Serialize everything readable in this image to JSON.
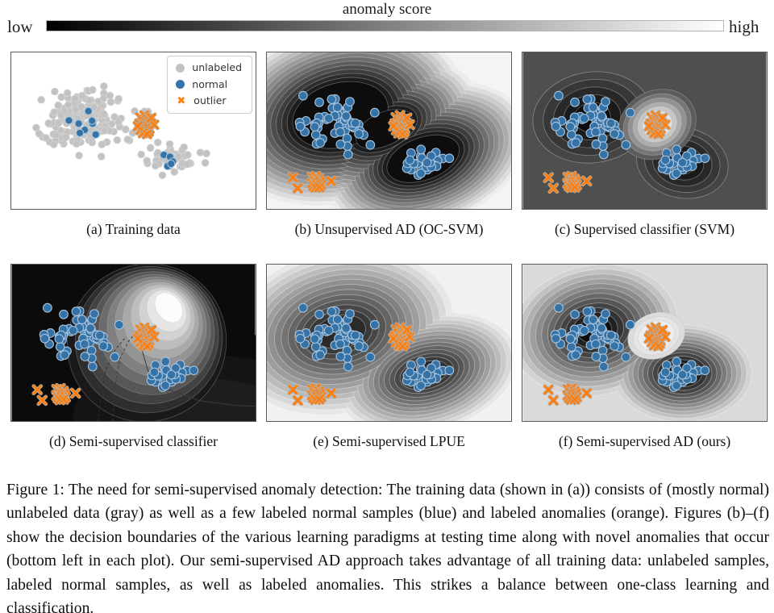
{
  "caption": {
    "text": "Figure 1: The need for semi-supervised anomaly detection: The training data (shown in (a)) consists of (mostly normal) unlabeled data (gray) as well as a few labeled normal samples (blue) and labeled anomalies (orange). Figures (b)–(f) show the decision boundaries of the various learning paradigms at testing time along with novel anomalies that occur (bottom left in each plot). Our semi-supervised AD approach takes advantage of all training data: unlabeled samples, labeled normal samples, as well as labeled anomalies. This strikes a balance between one-class learning and classification."
  },
  "icons": {
    "outlier_marker": "✖"
  },
  "chart_data": {
    "type": "scatter",
    "colorbar": {
      "title": "anomaly score",
      "low_label": "low",
      "high_label": "high",
      "gradient": [
        "#000000",
        "#ffffff"
      ]
    },
    "legend": {
      "position": "top-right of panel (a)",
      "items": [
        {
          "label": "unlabeled",
          "class": "unlabeled",
          "marker": "circle"
        },
        {
          "label": "normal",
          "class": "normal",
          "marker": "circle"
        },
        {
          "label": "outlier",
          "class": "outlier",
          "marker": "x"
        }
      ]
    },
    "classes": {
      "unlabeled": {
        "fill": "#c2c2c2",
        "edge": "#d0d0d0"
      },
      "normal": {
        "fill": "#3572a6",
        "edge": "#a8c4dd"
      },
      "outlier": {
        "fill": "#ff7f0e",
        "edge": "#b5b0a8"
      }
    },
    "point_groups": {
      "unlabeled_big": {
        "class": "unlabeled",
        "size": 4.3,
        "gen": {
          "seed": 101,
          "count": 170,
          "center": [
            0.295,
            0.43
          ],
          "std": [
            0.082,
            0.094
          ]
        }
      },
      "unlabeled_small": {
        "class": "unlabeled",
        "size": 4.3,
        "gen": {
          "seed": 102,
          "count": 46,
          "center": [
            0.66,
            0.685
          ],
          "std": [
            0.05,
            0.043
          ]
        }
      },
      "unlabeled_extra": {
        "class": "unlabeled",
        "size": 4.3,
        "points": [
          [
            0.505,
            0.375
          ],
          [
            0.545,
            0.377
          ],
          [
            0.497,
            0.515
          ],
          [
            0.476,
            0.556
          ],
          [
            0.775,
            0.64
          ],
          [
            0.8,
            0.646
          ],
          [
            0.57,
            0.61
          ],
          [
            0.532,
            0.652
          ],
          [
            0.468,
            0.492
          ],
          [
            0.6,
            0.575
          ]
        ]
      },
      "normal_big": {
        "class": "normal",
        "size": 4.6,
        "points": [
          [
            0.235,
            0.435
          ],
          [
            0.275,
            0.455
          ],
          [
            0.315,
            0.375
          ],
          [
            0.332,
            0.455
          ],
          [
            0.3,
            0.495
          ],
          [
            0.28,
            0.515
          ],
          [
            0.345,
            0.525
          ],
          [
            0.33,
            0.437
          ]
        ]
      },
      "normal_small": {
        "class": "normal",
        "size": 4.6,
        "points": [
          [
            0.625,
            0.655
          ],
          [
            0.65,
            0.667
          ],
          [
            0.662,
            0.697
          ],
          [
            0.64,
            0.727
          ],
          [
            0.655,
            0.712
          ]
        ]
      },
      "outlier_train": {
        "class": "outlier",
        "size": 4.4,
        "points": [
          [
            0.528,
            0.415
          ],
          [
            0.545,
            0.402
          ],
          [
            0.562,
            0.425
          ],
          [
            0.538,
            0.438
          ],
          [
            0.555,
            0.446
          ],
          [
            0.572,
            0.452
          ],
          [
            0.524,
            0.455
          ],
          [
            0.545,
            0.462
          ],
          [
            0.56,
            0.47
          ],
          [
            0.534,
            0.476
          ],
          [
            0.55,
            0.482
          ],
          [
            0.566,
            0.487
          ],
          [
            0.529,
            0.496
          ],
          [
            0.548,
            0.501
          ],
          [
            0.563,
            0.506
          ],
          [
            0.539,
            0.516
          ],
          [
            0.556,
            0.522
          ],
          [
            0.585,
            0.462
          ],
          [
            0.518,
            0.472
          ],
          [
            0.574,
            0.418
          ]
        ]
      },
      "test_big": {
        "class": "normal",
        "size": 5.4,
        "gen": {
          "seed": 111,
          "count": 60,
          "center": [
            0.3,
            0.44
          ],
          "std": [
            0.076,
            0.082
          ]
        }
      },
      "test_small": {
        "class": "normal",
        "size": 5.4,
        "gen": {
          "seed": 112,
          "count": 25,
          "center": [
            0.655,
            0.7
          ],
          "std": [
            0.052,
            0.042
          ]
        }
      },
      "novel_anomalies": {
        "class": "outlier",
        "size": 4.6,
        "points": [
          [
            0.105,
            0.8
          ],
          [
            0.125,
            0.868
          ],
          [
            0.185,
            0.798
          ],
          [
            0.2,
            0.792
          ],
          [
            0.212,
            0.81
          ],
          [
            0.194,
            0.82
          ],
          [
            0.184,
            0.836
          ],
          [
            0.205,
            0.83
          ],
          [
            0.217,
            0.826
          ],
          [
            0.19,
            0.852
          ],
          [
            0.205,
            0.846
          ],
          [
            0.221,
            0.846
          ],
          [
            0.198,
            0.864
          ],
          [
            0.213,
            0.861
          ],
          [
            0.262,
            0.822
          ]
        ]
      }
    },
    "panels": [
      {
        "id": "a",
        "caption": "(a) Training data",
        "legend": true,
        "background": {
          "fill": "#ffffff",
          "stacks": []
        },
        "groups": [
          "unlabeled_big",
          "unlabeled_small",
          "unlabeled_extra",
          "normal_big",
          "normal_small",
          "outlier_train"
        ]
      },
      {
        "id": "b",
        "caption": "(b) Unsupervised AD (OC-SVM)",
        "background": {
          "fill": "#f4f4f4",
          "stacks": [
            {
              "levels": 15,
              "outer": "#ececec",
              "inner": "#0d0d0d",
              "stroke": "rgba(255,255,255,0.30)",
              "blobs": [
                {
                  "cx0": 0.3,
                  "cy0": 0.4,
                  "rx0": 0.52,
                  "ry0": 0.56,
                  "rx1": 0.2,
                  "ry1": 0.205,
                  "rot": -15
                },
                {
                  "cx0": 0.65,
                  "cy0": 0.66,
                  "cx1": 0.64,
                  "cy1": 0.68,
                  "rx0": 0.44,
                  "ry0": 0.44,
                  "rx1": 0.155,
                  "ry1": 0.135,
                  "rot": -20
                },
                {
                  "cx0": 0.47,
                  "cy0": 0.5,
                  "cx1": 0.48,
                  "cy1": 0.49,
                  "rx0": 0.42,
                  "ry0": 0.42,
                  "rx1": 0.125,
                  "ry1": 0.105,
                  "rot": -25
                }
              ]
            }
          ]
        },
        "groups": [
          "test_big",
          "test_small",
          "outlier_train",
          "novel_anomalies"
        ]
      },
      {
        "id": "c",
        "caption": "(c) Supervised classifier (SVM)",
        "background": {
          "fill": "#4f4f4f",
          "stacks": [
            {
              "levels": 5,
              "outer": "#454545",
              "inner": "#0b0b0b",
              "stroke": "rgba(255,255,255,0.35)",
              "blobs": [
                {
                  "cx0": 0.285,
                  "cy0": 0.415,
                  "rx0": 0.245,
                  "ry0": 0.29,
                  "rx1": 0.075,
                  "ry1": 0.095,
                  "rot": -8
                },
                {
                  "cx0": 0.655,
                  "cy0": 0.705,
                  "rx0": 0.19,
                  "ry0": 0.225,
                  "rx1": 0.055,
                  "ry1": 0.07,
                  "rot": 12
                }
              ]
            },
            {
              "levels": 7,
              "outer": "#5c5c5c",
              "inner": "#fdfdfd",
              "stroke": "rgba(255,255,255,0.25)",
              "blobs": [
                {
                  "cx0": 0.552,
                  "cy0": 0.46,
                  "rx0": 0.165,
                  "ry0": 0.215,
                  "rx1": 0.04,
                  "ry1": 0.055,
                  "rot": -28
                }
              ]
            }
          ]
        },
        "groups": [
          "test_big",
          "test_small",
          "outlier_train",
          "novel_anomalies"
        ]
      },
      {
        "id": "d",
        "caption": "(d) Semi-supervised classifier",
        "background": {
          "fill": "#0b0b0b",
          "stacks": [
            {
              "levels": 3,
              "outer": "#0b0b0b",
              "inner": "#1d1d1d",
              "stroke": "none",
              "blobs": [
                {
                  "cx0": 0.8,
                  "cy0": 0.98,
                  "rx0": 0.75,
                  "ry0": 0.55,
                  "rx1": 0.35,
                  "ry1": 0.25,
                  "rot": 0
                }
              ]
            },
            {
              "levels": 12,
              "outer": "#191919",
              "inner": "#fbfbfb",
              "stroke": "rgba(190,190,190,0.35)",
              "blobs": [
                {
                  "cx0": 0.555,
                  "cy0": 0.5,
                  "cx1": 0.645,
                  "cy1": 0.275,
                  "rx0": 0.33,
                  "ry0": 0.5,
                  "rx1": 0.05,
                  "ry1": 0.105,
                  "rot": -38
                }
              ]
            }
          ],
          "curves": [
            {
              "pts": [
                [
                  0.415,
                  1.0
                ],
                [
                  0.425,
                  0.78
                ],
                [
                  0.445,
                  0.6
                ],
                [
                  0.48,
                  0.49
                ],
                [
                  0.505,
                  0.445
                ]
              ],
              "stroke": "#3c3c3c",
              "dash": "3 3"
            },
            {
              "pts": [
                [
                  0.355,
                  1.0
                ],
                [
                  0.37,
                  0.8
                ],
                [
                  0.39,
                  0.66
                ],
                [
                  0.425,
                  0.545
                ],
                [
                  0.465,
                  0.47
                ]
              ],
              "stroke": "#2e2e2e",
              "dash": "3 3"
            },
            {
              "pts": [
                [
                  0.53,
                  0.52
                ],
                [
                  0.56,
                  0.68
                ],
                [
                  0.645,
                  0.8
                ],
                [
                  0.77,
                  0.87
                ],
                [
                  0.92,
                  0.9
                ],
                [
                  1.0,
                  0.905
                ]
              ],
              "stroke": "#3c3c3c",
              "dash": ""
            }
          ]
        },
        "groups": [
          "test_big",
          "test_small",
          "outlier_train",
          "novel_anomalies"
        ]
      },
      {
        "id": "e",
        "caption": "(e) Semi-supervised LPUE",
        "background": {
          "fill": "#f1f1f1",
          "stacks": [
            {
              "levels": 14,
              "outer": "#e7e7e7",
              "inner": "#2a2a2a",
              "stroke": "rgba(255,255,255,0.40)",
              "blobs": [
                {
                  "cx0": 0.3,
                  "cy0": 0.43,
                  "rx0": 0.47,
                  "ry0": 0.52,
                  "rx1": 0.105,
                  "ry1": 0.105,
                  "rot": -12
                },
                {
                  "cx0": 0.655,
                  "cy0": 0.695,
                  "rx0": 0.38,
                  "ry0": 0.37,
                  "rx1": 0.09,
                  "ry1": 0.075,
                  "rot": -15
                }
              ]
            }
          ]
        },
        "groups": [
          "test_big",
          "test_small",
          "outlier_train",
          "novel_anomalies"
        ]
      },
      {
        "id": "f",
        "caption": "(f) Semi-supervised AD (ours)",
        "background": {
          "fill": "#dadada",
          "stacks": [
            {
              "levels": 12,
              "outer": "#d3d3d3",
              "inner": "#0f0f0f",
              "stroke": "rgba(255,255,255,0.40)",
              "blobs": [
                {
                  "cx0": 0.295,
                  "cy0": 0.42,
                  "rx0": 0.345,
                  "ry0": 0.415,
                  "rx1": 0.07,
                  "ry1": 0.08,
                  "rot": -12
                },
                {
                  "cx0": 0.655,
                  "cy0": 0.695,
                  "rx0": 0.285,
                  "ry0": 0.31,
                  "rx1": 0.06,
                  "ry1": 0.065,
                  "rot": 0
                }
              ]
            },
            {
              "levels": 5,
              "outer": "#dcdcdc",
              "inner": "#ffffff",
              "stroke": "rgba(180,180,180,0.30)",
              "blobs": [
                {
                  "cx0": 0.548,
                  "cy0": 0.455,
                  "rx0": 0.12,
                  "ry0": 0.145,
                  "rx1": 0.032,
                  "ry1": 0.04,
                  "rot": -20
                }
              ]
            }
          ]
        },
        "groups": [
          "test_big",
          "test_small",
          "outlier_train",
          "novel_anomalies"
        ]
      }
    ]
  }
}
